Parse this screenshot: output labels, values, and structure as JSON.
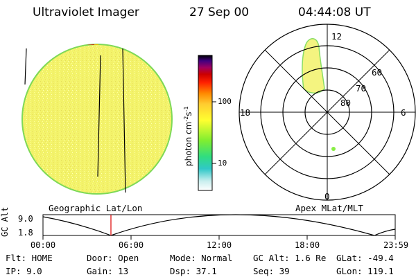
{
  "header": {
    "instrument": "Ultraviolet Imager",
    "date": "27 Sep 00",
    "time": "04:44:08 UT"
  },
  "colorbar": {
    "unit_label": "photon cm",
    "unit_exp1": "-2",
    "unit_mid": "s",
    "unit_exp2": "-1",
    "ticks": [
      "100",
      "10"
    ]
  },
  "left_panel": {
    "caption": "Geographic Lat/Lon"
  },
  "polar_panel": {
    "caption": "Apex MLat/MLT",
    "lat_labels": [
      "60",
      "70",
      "80"
    ],
    "mlt_labels": {
      "top": "12",
      "left": "18",
      "right": "6",
      "bottom": "0"
    }
  },
  "altitude_plot": {
    "y_label": "GC Alt",
    "y_ticks": [
      "9.0",
      "1.8"
    ],
    "x_ticks": [
      "00:00",
      "06:00",
      "12:00",
      "18:00",
      "23:59"
    ]
  },
  "info": {
    "row1": {
      "flt": "Flt: HOME",
      "door": "Door: Open",
      "mode": "Mode: Normal",
      "gcalt": "GC Alt: 1.6 Re",
      "glat": "GLat: -49.4"
    },
    "row2": {
      "ip": "IP:  9.0",
      "gain": "Gain: 13",
      "dsp": "Dsp:   37.1",
      "seq": "Seq: 39",
      "glon": "GLon: 119.1"
    }
  },
  "colors": {
    "disk_fill": "#f2f266",
    "disk_edge": "#7ed957",
    "auroral_fill": "#f4f480",
    "auroral_edge": "#88dd66",
    "marker_red": "#dd0000"
  }
}
